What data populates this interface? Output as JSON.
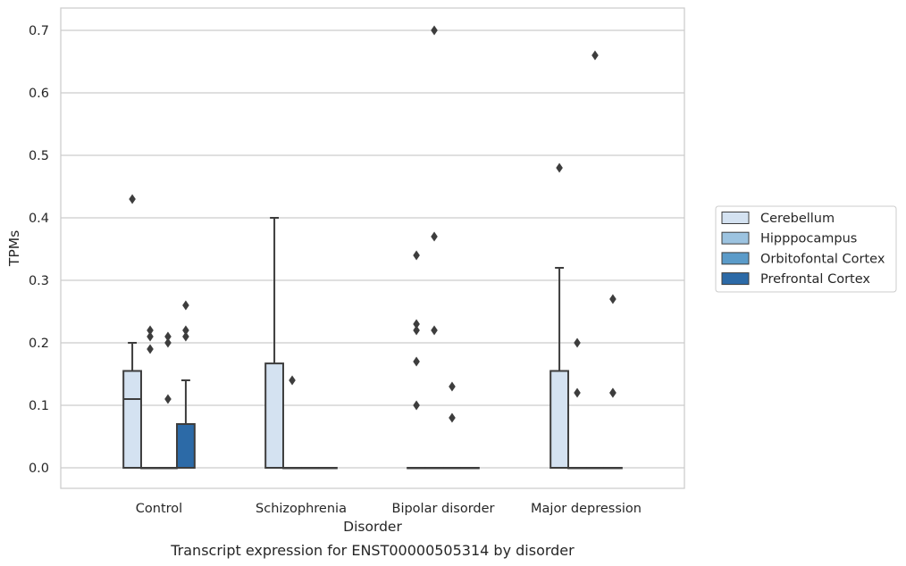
{
  "chart_data": {
    "type": "box",
    "title": "",
    "caption": "Transcript expression for ENST00000505314 by disorder",
    "xlabel": "Disorder",
    "ylabel": "TPMs",
    "ylim": [
      -0.035,
      0.735
    ],
    "yticks": [
      0.0,
      0.1,
      0.2,
      0.3,
      0.4,
      0.5,
      0.6,
      0.7
    ],
    "ytick_labels": [
      "0.0",
      "0.1",
      "0.2",
      "0.3",
      "0.4",
      "0.5",
      "0.6",
      "0.7"
    ],
    "grid": "horizontal",
    "legend_position": "right",
    "categories": [
      "Control",
      "Schizophrenia",
      "Bipolar disorder",
      "Major depression"
    ],
    "series": [
      {
        "name": "Cerebellum",
        "color": "#d4e2f1",
        "boxes": [
          {
            "q1": 0.0,
            "median": 0.11,
            "q3": 0.155,
            "whisker_low": 0.0,
            "whisker_high": 0.2,
            "outliers": [
              0.43
            ]
          },
          {
            "q1": 0.0,
            "median": 0.0,
            "q3": 0.167,
            "whisker_low": 0.0,
            "whisker_high": 0.4,
            "outliers": []
          },
          {
            "q1": 0.0,
            "median": 0.0,
            "q3": 0.0,
            "whisker_low": 0.0,
            "whisker_high": 0.0,
            "outliers": [
              0.1,
              0.17,
              0.22,
              0.23,
              0.34
            ]
          },
          {
            "q1": 0.0,
            "median": 0.0,
            "q3": 0.155,
            "whisker_low": 0.0,
            "whisker_high": 0.32,
            "outliers": [
              0.48
            ]
          }
        ]
      },
      {
        "name": "Hipppocampus",
        "color": "#9cc3e0",
        "boxes": [
          {
            "q1": 0.0,
            "median": 0.0,
            "q3": 0.0,
            "whisker_low": 0.0,
            "whisker_high": 0.0,
            "outliers": [
              0.19,
              0.21,
              0.22
            ]
          },
          {
            "q1": 0.0,
            "median": 0.0,
            "q3": 0.0,
            "whisker_low": 0.0,
            "whisker_high": 0.0,
            "outliers": [
              0.14
            ]
          },
          {
            "q1": 0.0,
            "median": 0.0,
            "q3": 0.0,
            "whisker_low": 0.0,
            "whisker_high": 0.0,
            "outliers": [
              0.22,
              0.37,
              0.7
            ]
          },
          {
            "q1": 0.0,
            "median": 0.0,
            "q3": 0.0,
            "whisker_low": 0.0,
            "whisker_high": 0.0,
            "outliers": [
              0.12,
              0.2
            ]
          }
        ]
      },
      {
        "name": "Orbitofontal Cortex",
        "color": "#5b9bc9",
        "boxes": [
          {
            "q1": 0.0,
            "median": 0.0,
            "q3": 0.0,
            "whisker_low": 0.0,
            "whisker_high": 0.0,
            "outliers": [
              0.11,
              0.2,
              0.21
            ]
          },
          {
            "q1": 0.0,
            "median": 0.0,
            "q3": 0.0,
            "whisker_low": 0.0,
            "whisker_high": 0.0,
            "outliers": []
          },
          {
            "q1": 0.0,
            "median": 0.0,
            "q3": 0.0,
            "whisker_low": 0.0,
            "whisker_high": 0.0,
            "outliers": [
              0.08,
              0.13
            ]
          },
          {
            "q1": 0.0,
            "median": 0.0,
            "q3": 0.0,
            "whisker_low": 0.0,
            "whisker_high": 0.0,
            "outliers": [
              0.66
            ]
          }
        ]
      },
      {
        "name": "Prefrontal Cortex",
        "color": "#2c6aa7",
        "boxes": [
          {
            "q1": 0.0,
            "median": 0.0,
            "q3": 0.07,
            "whisker_low": 0.0,
            "whisker_high": 0.14,
            "outliers": [
              0.21,
              0.22,
              0.26
            ]
          },
          {
            "q1": 0.0,
            "median": 0.0,
            "q3": 0.0,
            "whisker_low": 0.0,
            "whisker_high": 0.0,
            "outliers": []
          },
          {
            "q1": 0.0,
            "median": 0.0,
            "q3": 0.0,
            "whisker_low": 0.0,
            "whisker_high": 0.0,
            "outliers": []
          },
          {
            "q1": 0.0,
            "median": 0.0,
            "q3": 0.0,
            "whisker_low": 0.0,
            "whisker_high": 0.0,
            "outliers": [
              0.12,
              0.12,
              0.27
            ]
          }
        ]
      }
    ]
  }
}
